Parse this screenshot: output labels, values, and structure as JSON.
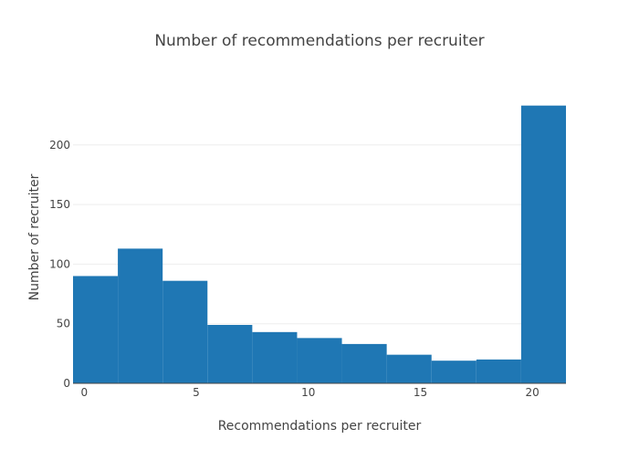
{
  "chart_data": {
    "type": "bar",
    "title": "Number of recommendations per recruiter",
    "xlabel": "Recommendations per recruiter",
    "ylabel": "Number of recruiter",
    "bins": [
      {
        "x0": -0.5,
        "x1": 1.5,
        "value": 90
      },
      {
        "x0": 1.5,
        "x1": 3.5,
        "value": 113
      },
      {
        "x0": 3.5,
        "x1": 5.5,
        "value": 86
      },
      {
        "x0": 5.5,
        "x1": 7.5,
        "value": 49
      },
      {
        "x0": 7.5,
        "x1": 9.5,
        "value": 43
      },
      {
        "x0": 9.5,
        "x1": 11.5,
        "value": 38
      },
      {
        "x0": 11.5,
        "x1": 13.5,
        "value": 33
      },
      {
        "x0": 13.5,
        "x1": 15.5,
        "value": 24
      },
      {
        "x0": 15.5,
        "x1": 17.5,
        "value": 19
      },
      {
        "x0": 17.5,
        "x1": 19.5,
        "value": 20
      },
      {
        "x0": 19.5,
        "x1": 21.5,
        "value": 233
      }
    ],
    "x_ticks": [
      0,
      5,
      10,
      15,
      20
    ],
    "y_ticks": [
      0,
      50,
      100,
      150,
      200
    ],
    "xlim": [
      -0.5,
      21.5
    ],
    "ylim": [
      0,
      245
    ],
    "grid": true,
    "bar_color": "#1f77b4"
  }
}
